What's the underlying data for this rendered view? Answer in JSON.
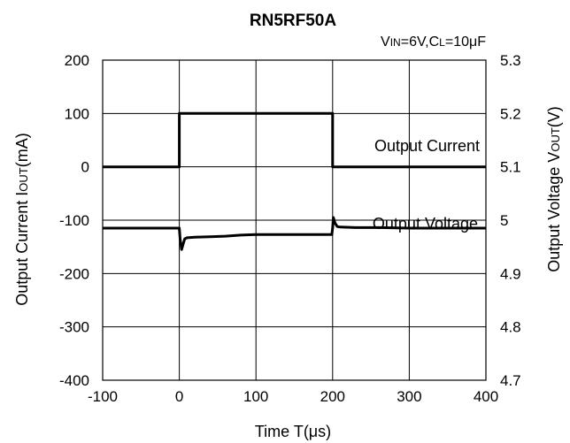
{
  "chart_data": {
    "type": "line",
    "title": "RN5RF50A",
    "condition_prefix_v": "V",
    "condition_sub_in": "IN",
    "condition_mid": "=6V,C",
    "condition_sub_l": "L",
    "condition_suffix": "=10μF",
    "xlabel": "Time T(μs)",
    "ylabel_left_prefix": "Output Current I",
    "ylabel_left_sub": "OUT",
    "ylabel_left_suffix": "(mA)",
    "ylabel_right_prefix": "Output Voltage V",
    "ylabel_right_sub": "OUT",
    "ylabel_right_suffix": "(V)",
    "xlim": [
      -100,
      400
    ],
    "ylim_left": [
      -400,
      200
    ],
    "ylim_right": [
      4.7,
      5.3
    ],
    "grid": true,
    "x_ticks": [
      "-100",
      "0",
      "100",
      "200",
      "300",
      "400"
    ],
    "y_left_ticks": [
      "200",
      "100",
      "0",
      "-100",
      "-200",
      "-300",
      "-400"
    ],
    "y_right_ticks": [
      "5.3",
      "5.2",
      "5.1",
      "5",
      "4.9",
      "4.8",
      "4.7"
    ],
    "annotations": [
      "Output Current",
      "Output Voltage"
    ],
    "series": [
      {
        "name": "Output Current",
        "axis": "left",
        "x": [
          -100,
          0,
          0,
          200,
          200,
          400
        ],
        "y": [
          0,
          0,
          100,
          100,
          0,
          0
        ]
      },
      {
        "name": "Output Voltage",
        "axis": "right",
        "x": [
          -100,
          0,
          1,
          3,
          5,
          7,
          10,
          20,
          40,
          60,
          80,
          100,
          150,
          199,
          200,
          201,
          203,
          206,
          210,
          230,
          260,
          300,
          400
        ],
        "y": [
          4.985,
          4.985,
          4.965,
          4.945,
          4.955,
          4.965,
          4.967,
          4.968,
          4.969,
          4.97,
          4.972,
          4.973,
          4.973,
          4.973,
          4.985,
          5.005,
          4.995,
          4.988,
          4.987,
          4.986,
          4.986,
          4.985,
          4.985
        ]
      }
    ]
  }
}
